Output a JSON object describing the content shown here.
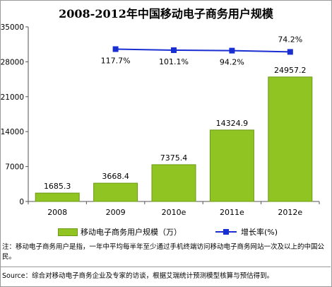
{
  "title": "2008-2012年中国移动电子商务用户规模",
  "chart_data": {
    "type": "bar",
    "categories": [
      "2008",
      "2009",
      "2010e",
      "2011e",
      "2012e"
    ],
    "series": [
      {
        "name": "移动电子商务用户规模（万）",
        "type": "bar",
        "axis": "left",
        "values": [
          1685.3,
          3668.4,
          7375.4,
          14324.9,
          24957.2
        ],
        "labels": [
          "1685.3",
          "3668.4",
          "7375.4",
          "14324.9",
          "24957.2"
        ],
        "color": "#8fc422"
      },
      {
        "name": "增长率(%)",
        "type": "line",
        "axis": "secondary",
        "values": [
          null,
          117.7,
          101.1,
          94.2,
          74.2
        ],
        "labels": [
          "",
          "117.7%",
          "101.1%",
          "94.2%",
          "74.2%"
        ],
        "color": "#1a2fd1"
      }
    ],
    "y_ticks": [
      "0",
      "7000",
      "14000",
      "21000",
      "28000",
      "35000"
    ],
    "ylim": [
      0,
      35000
    ],
    "grid": false,
    "legend_position": "bottom"
  },
  "note": "注：移动电子商务用户是指，一年中平均每半年至少通过手机终端访问移动电子商务网站一次及以上的中国公民。",
  "source": "Source：综合对移动电子商务企业及专家的访谈，根据艾瑞统计预测模型核算与预估得到。"
}
